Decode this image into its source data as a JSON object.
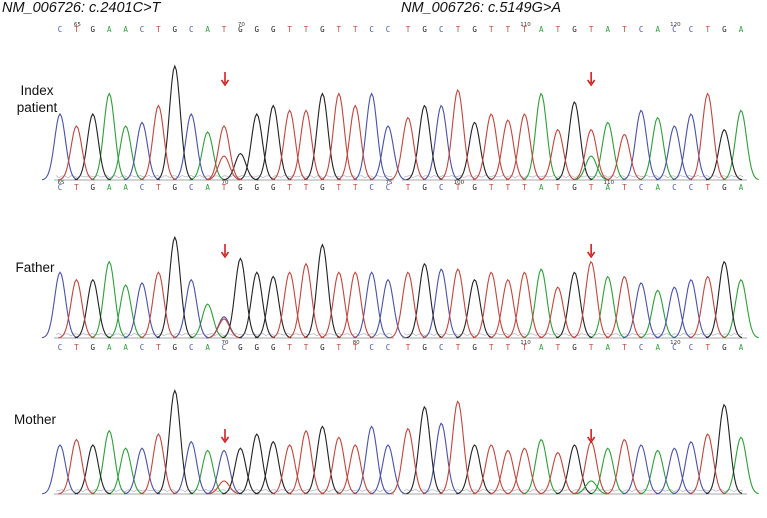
{
  "figure": {
    "left_title": {
      "gene": "NM_006726",
      "variant": ": c.2401C>T"
    },
    "right_title": {
      "gene": "NM_006726",
      "variant": ": c.5149G>A"
    },
    "rows": [
      {
        "label_lines": [
          "Index",
          "patient"
        ]
      },
      {
        "label_lines": [
          "Father"
        ]
      },
      {
        "label_lines": [
          "Mother"
        ]
      }
    ],
    "base_colors": {
      "A": "#2e9e3a",
      "C": "#4a52a8",
      "G": "#222222",
      "T": "#c0463e"
    },
    "arrow_color": "#d42020",
    "panels": [
      {
        "row": 0,
        "col": 0,
        "bases": "CTGAACTGCATGGGTTGTTCC",
        "top_ticks": [
          {
            "i": 1,
            "label": "65"
          },
          {
            "i": 11,
            "label": "70"
          }
        ],
        "bottom_ticks": [
          {
            "i": 0,
            "label": "65"
          },
          {
            "i": 10,
            "label": "70"
          },
          {
            "i": 20,
            "label": "75"
          }
        ]
      },
      {
        "row": 0,
        "col": 1,
        "bases": "TGCTGTTTATGTATCACCTGA",
        "top_ticks": [
          {
            "i": 7,
            "label": "110"
          },
          {
            "i": 16,
            "label": "120"
          }
        ],
        "bottom_ticks": [
          {
            "i": 3,
            "label": "100"
          },
          {
            "i": 12,
            "label": "110"
          }
        ]
      },
      {
        "row": 1,
        "col": 0,
        "bases": "CTGAACTGCACGGGTTGTTCC",
        "top_ticks": [],
        "bottom_ticks": [
          {
            "i": 10,
            "label": "70"
          },
          {
            "i": 18,
            "label": "80"
          }
        ]
      },
      {
        "row": 1,
        "col": 1,
        "bases": "TGCTGTTTATGTATCACCTGA",
        "top_ticks": [],
        "bottom_ticks": [
          {
            "i": 7,
            "label": "110"
          },
          {
            "i": 16,
            "label": "120"
          }
        ]
      },
      {
        "row": 2,
        "col": 0,
        "bases": "",
        "top_ticks": [],
        "bottom_ticks": []
      },
      {
        "row": 2,
        "col": 1,
        "bases": "",
        "top_ticks": [],
        "bottom_ticks": []
      }
    ]
  }
}
